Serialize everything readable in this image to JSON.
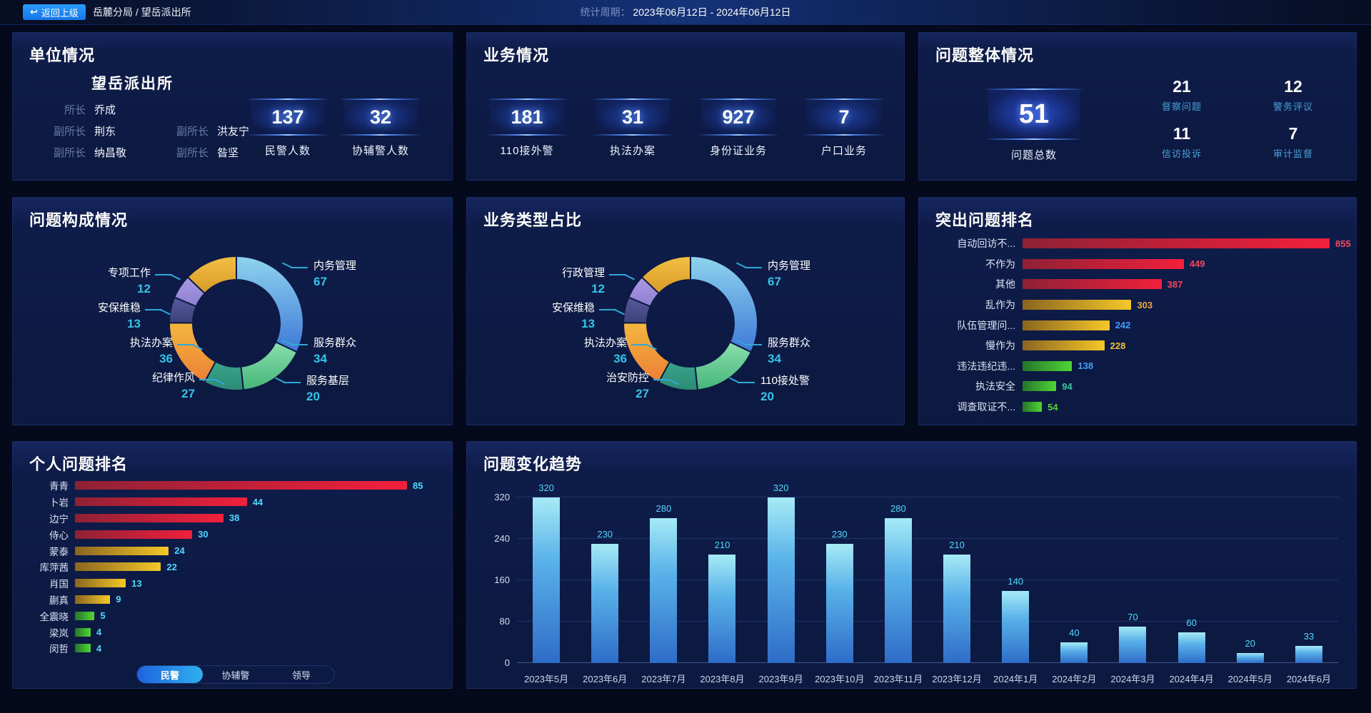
{
  "top_bar": {
    "back_button": "返回上级",
    "breadcrumb": "岳麓分局 / 望岳派出所",
    "period_label": "统计周期：",
    "period_value": "2023年06月12日 - 2024年06月12日"
  },
  "panels": {
    "unit": {
      "title": "单位情况",
      "station_name": "望岳派出所",
      "leader_rows": [
        [
          {
            "role": "所长",
            "name": "乔成"
          }
        ],
        [
          {
            "role": "副所长",
            "name": "荆东"
          },
          {
            "role": "副所长",
            "name": "洪友宁"
          }
        ],
        [
          {
            "role": "副所长",
            "name": "纳昌敬"
          },
          {
            "role": "副所长",
            "name": "昝坚"
          }
        ]
      ],
      "stats": [
        {
          "value": "137",
          "label": "民警人数"
        },
        {
          "value": "32",
          "label": "协辅警人数"
        }
      ]
    },
    "business": {
      "title": "业务情况",
      "stats": [
        {
          "value": "181",
          "label": "110接外警"
        },
        {
          "value": "31",
          "label": "执法办案"
        },
        {
          "value": "927",
          "label": "身份证业务"
        },
        {
          "value": "7",
          "label": "户口业务"
        }
      ]
    },
    "problem_overview": {
      "title": "问题整体情况",
      "total_value": "51",
      "total_label": "问题总数",
      "quad": [
        {
          "value": "21",
          "label": "督察问题"
        },
        {
          "value": "12",
          "label": "警务评议"
        },
        {
          "value": "11",
          "label": "信访投诉"
        },
        {
          "value": "7",
          "label": "审计监督"
        }
      ]
    },
    "personal": {
      "tabs": [
        "民警",
        "协辅警",
        "领导"
      ],
      "active_tab": "民警"
    }
  },
  "colors": {
    "accent_cyan": "#35c4e8",
    "value_cyan": "#4fd9ff",
    "tier_red": "#f5455c",
    "tier_gold": "#f0c040",
    "tier_green": "#57d23f"
  },
  "chart_data": [
    {
      "id": "problem_composition",
      "type": "pie",
      "title": "问题构成情况",
      "series": [
        {
          "name": "内务管理",
          "value": 67,
          "color": "#8fd4ee",
          "color2": "#3e78d8"
        },
        {
          "name": "服务群众",
          "value": 34,
          "color": "#8ce0ae",
          "color2": "#45b578"
        },
        {
          "name": "服务基层",
          "value": 20,
          "color": "#3aa58c",
          "color2": "#2b8a74"
        },
        {
          "name": "执法办案",
          "value": 36,
          "color": "#f4b73e",
          "color2": "#ec7f35"
        },
        {
          "name": "安保维稳",
          "value": 13,
          "color": "#555a9e",
          "color2": "#3d4178"
        },
        {
          "name": "专项工作",
          "value": 12,
          "color": "#a99ae4",
          "color2": "#8f7fd0"
        },
        {
          "name": "纪律作风",
          "value": 27,
          "color": "#f2c043",
          "color2": "#d89a28"
        }
      ],
      "labels_left": [
        "专项工作",
        "安保维稳",
        "执法办案",
        "纪律作风"
      ],
      "labels_right": [
        "内务管理",
        "服务群众",
        "服务基层"
      ]
    },
    {
      "id": "business_type",
      "type": "pie",
      "title": "业务类型占比",
      "series": [
        {
          "name": "内务管理",
          "value": 67,
          "color": "#8fd4ee",
          "color2": "#3e78d8"
        },
        {
          "name": "服务群众",
          "value": 34,
          "color": "#8ce0ae",
          "color2": "#45b578"
        },
        {
          "name": "110接处警",
          "value": 20,
          "color": "#3aa58c",
          "color2": "#2b8a74"
        },
        {
          "name": "执法办案",
          "value": 36,
          "color": "#f4b73e",
          "color2": "#ec7f35"
        },
        {
          "name": "安保维稳",
          "value": 13,
          "color": "#555a9e",
          "color2": "#3d4178"
        },
        {
          "name": "行政管理",
          "value": 12,
          "color": "#a99ae4",
          "color2": "#8f7fd0"
        },
        {
          "name": "治安防控",
          "value": 27,
          "color": "#f2c043",
          "color2": "#d89a28"
        }
      ],
      "labels_left": [
        "行政管理",
        "安保维稳",
        "执法办案",
        "治安防控"
      ],
      "labels_right": [
        "内务管理",
        "服务群众",
        "110接处警"
      ]
    },
    {
      "id": "outstanding_problems",
      "type": "bar",
      "orientation": "horizontal",
      "title": "突出问题排名",
      "xlim": [
        0,
        855
      ],
      "items": [
        {
          "label": "自动回访不...",
          "value": 855,
          "tier": "red",
          "value_color": "#f5455c"
        },
        {
          "label": "不作为",
          "value": 449,
          "tier": "red",
          "value_color": "#f5455c"
        },
        {
          "label": "其他",
          "value": 387,
          "tier": "red",
          "value_color": "#f5455c"
        },
        {
          "label": "乱作为",
          "value": 303,
          "tier": "gold",
          "value_color": "#f0a63a"
        },
        {
          "label": "队伍管理问...",
          "value": 242,
          "tier": "gold",
          "value_color": "#3f9fff"
        },
        {
          "label": "慢作为",
          "value": 228,
          "tier": "gold",
          "value_color": "#f0c040"
        },
        {
          "label": "违法违纪违...",
          "value": 138,
          "tier": "green",
          "value_color": "#3f9fff"
        },
        {
          "label": "执法安全",
          "value": 94,
          "tier": "green",
          "value_color": "#35c8a0"
        },
        {
          "label": "调查取证不...",
          "value": 54,
          "tier": "green",
          "value_color": "#57d23f"
        }
      ]
    },
    {
      "id": "personal_problems",
      "type": "bar",
      "orientation": "horizontal",
      "title": "个人问题排名",
      "xlim": [
        0,
        85
      ],
      "items": [
        {
          "label": "青青",
          "value": 85,
          "tier": "red",
          "value_color": "#4fd9ff"
        },
        {
          "label": "卜岩",
          "value": 44,
          "tier": "red",
          "value_color": "#4fd9ff"
        },
        {
          "label": "边宁",
          "value": 38,
          "tier": "red",
          "value_color": "#4fd9ff"
        },
        {
          "label": "侍心",
          "value": 30,
          "tier": "red",
          "value_color": "#4fd9ff"
        },
        {
          "label": "蒙泰",
          "value": 24,
          "tier": "gold",
          "value_color": "#4fd9ff"
        },
        {
          "label": "库萍茜",
          "value": 22,
          "tier": "gold",
          "value_color": "#4fd9ff"
        },
        {
          "label": "肖国",
          "value": 13,
          "tier": "gold",
          "value_color": "#4fd9ff"
        },
        {
          "label": "蒯真",
          "value": 9,
          "tier": "gold",
          "value_color": "#4fd9ff"
        },
        {
          "label": "全震晓",
          "value": 5,
          "tier": "green",
          "value_color": "#4fd9ff"
        },
        {
          "label": "梁岚",
          "value": 4,
          "tier": "green",
          "value_color": "#4fd9ff"
        },
        {
          "label": "闵哲",
          "value": 4,
          "tier": "green",
          "value_color": "#4fd9ff"
        }
      ]
    },
    {
      "id": "problem_trend",
      "type": "bar",
      "orientation": "vertical",
      "title": "问题变化趋势",
      "categories": [
        "2023年5月",
        "2023年6月",
        "2023年7月",
        "2023年8月",
        "2023年9月",
        "2023年10月",
        "2023年11月",
        "2023年12月",
        "2024年1月",
        "2024年2月",
        "2024年3月",
        "2024年4月",
        "2024年5月",
        "2024年6月"
      ],
      "values": [
        320,
        230,
        280,
        210,
        320,
        230,
        280,
        210,
        140,
        40,
        70,
        60,
        20,
        33
      ],
      "ylim": [
        0,
        320
      ],
      "yticks": [
        0,
        80,
        160,
        240,
        320
      ],
      "grid": true
    }
  ]
}
